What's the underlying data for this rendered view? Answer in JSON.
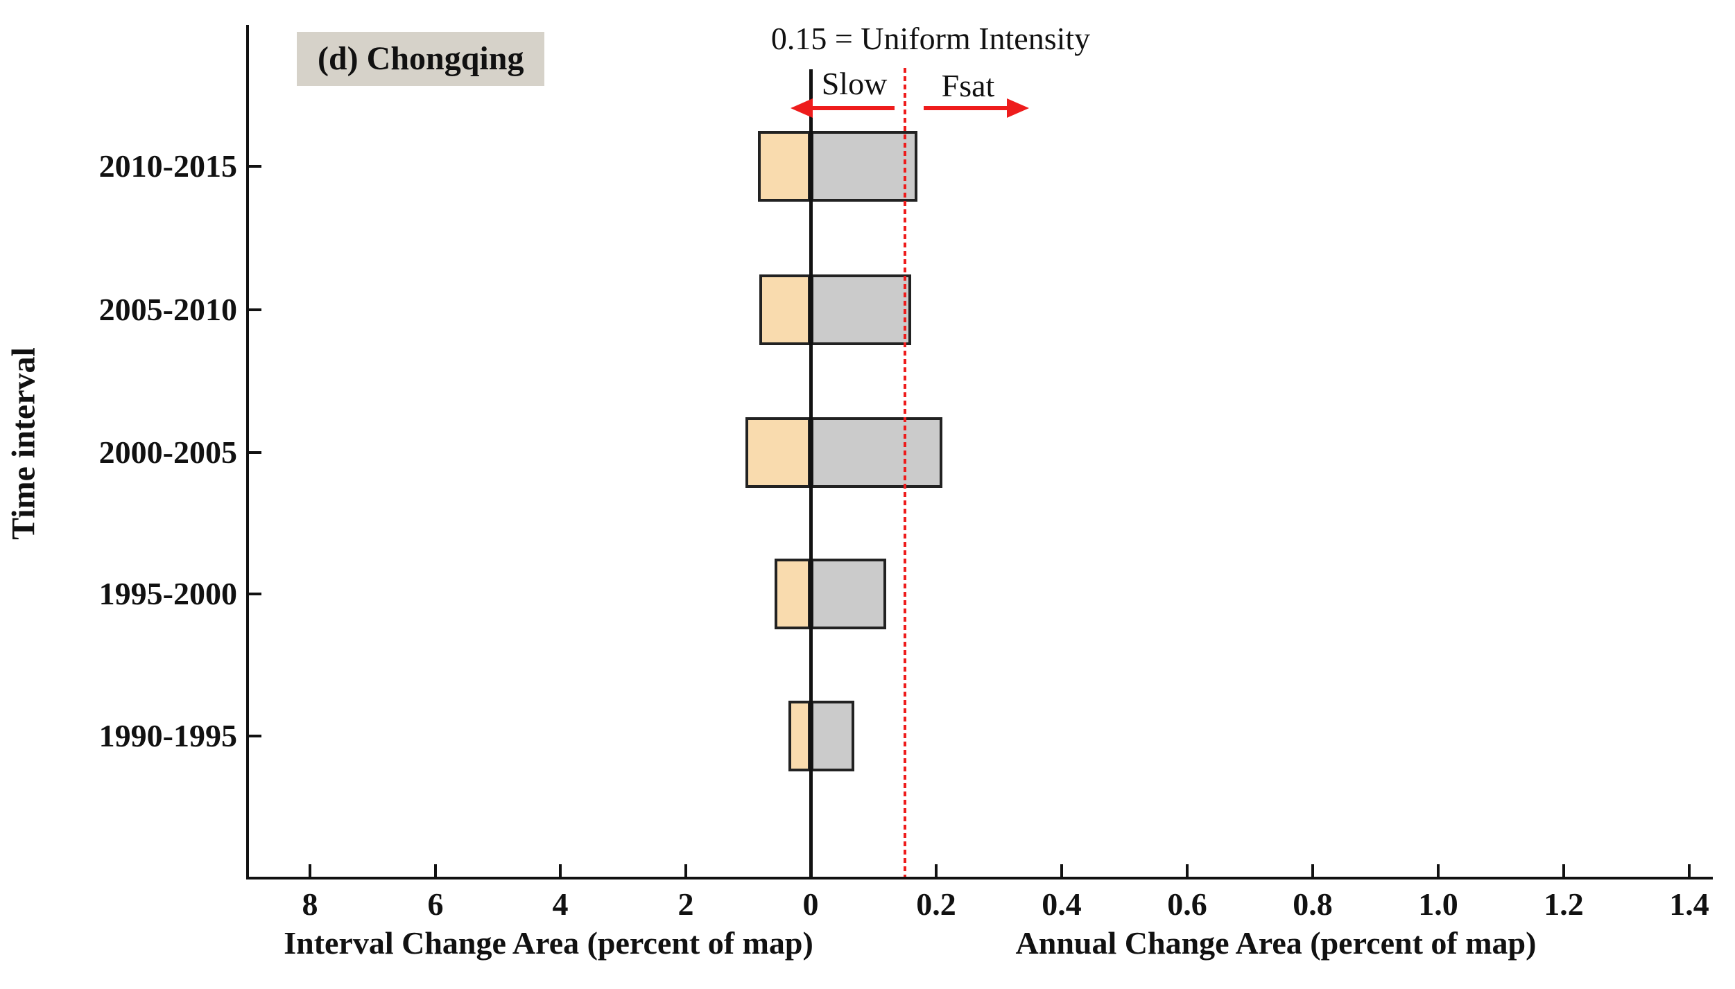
{
  "figure": {
    "background": "#ffffff",
    "text_color": "#111111"
  },
  "chart_data": {
    "type": "bar",
    "orientation": "horizontal-diverging",
    "title": "(d) Chongqing",
    "title_background": "#d6d2c9",
    "ylabel": "Time interval",
    "categories": [
      "2010-2015",
      "2005-2010",
      "2000-2005",
      "1995-2000",
      "1990-1995"
    ],
    "series": [
      {
        "name": "Interval Change Area (percent of map)",
        "side": "left",
        "color": "#f9dbae",
        "values": [
          0.84,
          0.82,
          1.04,
          0.58,
          0.35
        ]
      },
      {
        "name": "Annual Change Area (percent of map)",
        "side": "right",
        "color": "#cbcbcb",
        "values": [
          0.17,
          0.16,
          0.21,
          0.12,
          0.07
        ]
      }
    ],
    "left_axis": {
      "label": "Interval Change Area (percent of map)",
      "ticks": [
        "8",
        "6",
        "4",
        "2"
      ],
      "range": [
        0,
        9
      ],
      "direction": "increasing-leftward"
    },
    "right_axis": {
      "label": "Annual Change Area (percent of map)",
      "ticks": [
        "0.2",
        "0.4",
        "0.6",
        "0.8",
        "1.0",
        "1.2",
        "1.4"
      ],
      "range": [
        0,
        1.43
      ],
      "direction": "increasing-rightward"
    },
    "zero_tick": "0",
    "reference_line": {
      "value": 0.15,
      "axis": "right",
      "label": "0.15 = Uniform Intensity",
      "style": "dotted",
      "color": "#ee1c1c"
    },
    "annotations": {
      "slow": "Slow",
      "fast": "Fsat",
      "arrow_color": "#ee1c1c"
    },
    "bar_border_color": "#222222",
    "grid": false,
    "legend": "none"
  }
}
